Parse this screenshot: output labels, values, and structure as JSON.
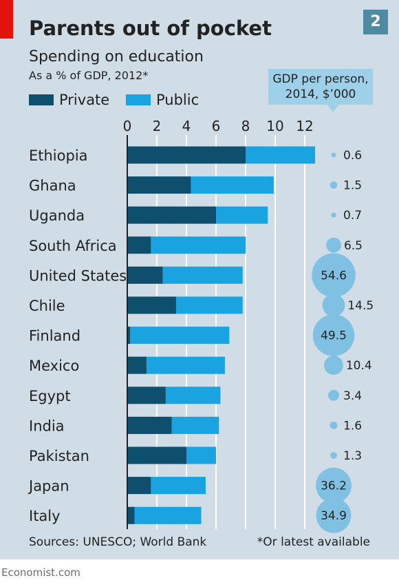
{
  "header": {
    "title": "Parents out of pocket",
    "chart_number": "2",
    "subtitle": "Spending on education",
    "unit_note": "As a % of GDP, 2012*"
  },
  "legend": {
    "private_label": "Private",
    "public_label": "Public"
  },
  "gdp_header": {
    "line1": "GDP per person,",
    "line2": "2014, $’000"
  },
  "colors": {
    "background": "#d0dde6",
    "private": "#0d4f6c",
    "public": "#19a3e0",
    "bubble": "#7fc0e3",
    "accent_red": "#e3120b"
  },
  "chart_data": {
    "type": "bar",
    "stacked": true,
    "orientation": "horizontal",
    "title": "Parents out of pocket",
    "subtitle": "Spending on education",
    "xlabel": "As a % of GDP, 2012*",
    "xlim": [
      0,
      13
    ],
    "xticks": [
      0,
      2,
      4,
      6,
      8,
      10,
      12
    ],
    "grid": true,
    "legend_position": "top-left",
    "categories": [
      "Ethiopia",
      "Ghana",
      "Uganda",
      "South Africa",
      "United States",
      "Chile",
      "Finland",
      "Mexico",
      "Egypt",
      "India",
      "Pakistan",
      "Japan",
      "Italy"
    ],
    "series": [
      {
        "name": "Private",
        "values": [
          8.0,
          4.3,
          6.0,
          1.6,
          2.4,
          3.3,
          0.2,
          1.3,
          2.6,
          3.0,
          4.0,
          1.6,
          0.5
        ]
      },
      {
        "name": "Public",
        "values": [
          4.7,
          5.6,
          3.5,
          6.4,
          5.4,
          4.5,
          6.7,
          5.3,
          3.7,
          3.2,
          2.0,
          3.7,
          4.5
        ]
      }
    ],
    "gdp_per_person": {
      "label": "GDP per person, 2014, $’000",
      "values": [
        0.6,
        1.5,
        0.7,
        6.5,
        54.6,
        14.5,
        49.5,
        10.4,
        3.4,
        1.6,
        1.3,
        36.2,
        34.9
      ],
      "labels": [
        "0.6",
        "1.5",
        "0.7",
        "6.5",
        "54.6",
        "14.5",
        "49.5",
        "10.4",
        "3.4",
        "1.6",
        "1.3",
        "36.2",
        "34.9"
      ]
    }
  },
  "footer": {
    "sources": "Sources: UNESCO; World Bank",
    "footnote": "*Or latest available",
    "brand": "Economist.com"
  }
}
